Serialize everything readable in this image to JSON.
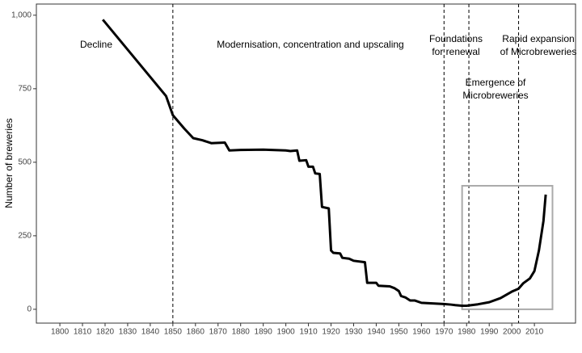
{
  "chart_data": {
    "type": "line",
    "y_label": "Number of breweries",
    "x": [
      1819,
      1847,
      1850,
      1855,
      1859,
      1863,
      1867,
      1873,
      1875,
      1880,
      1890,
      1900,
      1902,
      1905,
      1906,
      1909,
      1910,
      1912,
      1913,
      1915,
      1916,
      1919,
      1920,
      1921,
      1924,
      1925,
      1928,
      1930,
      1935,
      1936,
      1940,
      1941,
      1946,
      1948,
      1950,
      1951,
      1953,
      1955,
      1957,
      1960,
      1965,
      1970,
      1973,
      1975,
      1978,
      1980,
      1985,
      1990,
      1995,
      2000,
      2003,
      2005,
      2008,
      2010,
      2012,
      2014,
      2015
    ],
    "series": [
      {
        "color": "#000000",
        "values": [
          985,
          725,
          660,
          615,
          582,
          575,
          565,
          567,
          540,
          542,
          543,
          540,
          538,
          540,
          505,
          507,
          485,
          485,
          462,
          460,
          348,
          343,
          200,
          192,
          190,
          175,
          172,
          165,
          160,
          90,
          90,
          80,
          78,
          72,
          62,
          45,
          40,
          30,
          30,
          22,
          20,
          18,
          16,
          14,
          12,
          12,
          17,
          24,
          38,
          60,
          70,
          88,
          105,
          130,
          200,
          300,
          390
        ]
      }
    ],
    "xlim": [
      1789.6,
      2028.2
    ],
    "ylim": [
      -47,
      1038
    ],
    "xticks": [
      1800,
      1810,
      1820,
      1830,
      1840,
      1850,
      1860,
      1870,
      1880,
      1890,
      1900,
      1910,
      1920,
      1930,
      1940,
      1950,
      1960,
      1970,
      1980,
      1990,
      2000,
      2010
    ],
    "yticks": [
      0,
      250,
      500,
      750,
      {
        "value": 1000,
        "label": "1,000"
      }
    ],
    "vlines": [
      1850,
      1970,
      1981,
      2003
    ],
    "highlight": {
      "x": [
        1978,
        2018
      ],
      "y": [
        0,
        420
      ],
      "color": "#aaaaaa"
    },
    "annotations": [
      [
        "Decline"
      ],
      [
        "Modernisation, concentration and upscaling"
      ],
      [
        "Foundations",
        "for renewal"
      ],
      [
        "Rapid expansion",
        "of Microbreweries"
      ],
      [
        "Emergence of",
        "Microbreweries"
      ]
    ]
  }
}
